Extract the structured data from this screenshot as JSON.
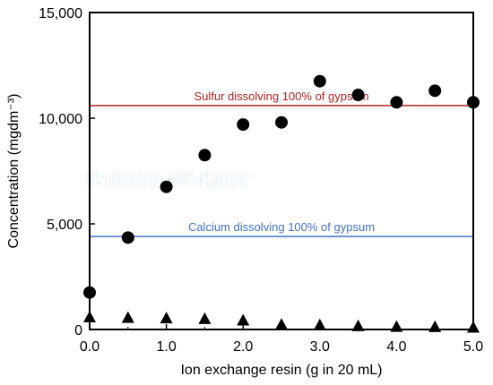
{
  "chart_data": {
    "type": "scatter",
    "title": "",
    "xlabel": "Ion exchange resin (g in 20 mL)",
    "ylabel": "Concentration (mgdm⁻³)",
    "xlim": [
      0,
      5
    ],
    "ylim": [
      0,
      15000
    ],
    "x_ticks": [
      "0.0",
      "1.0",
      "2.0",
      "3.0",
      "4.0",
      "5.0"
    ],
    "y_ticks": [
      "0",
      "5,000",
      "10,000",
      "15,000"
    ],
    "grid": false,
    "series": [
      {
        "marker": "circle",
        "color": "#000000",
        "points": [
          [
            0.0,
            1750
          ],
          [
            0.5,
            4350
          ],
          [
            1.0,
            6750
          ],
          [
            1.5,
            8250
          ],
          [
            2.0,
            9700
          ],
          [
            2.5,
            9800
          ],
          [
            3.0,
            11750
          ],
          [
            3.5,
            11100
          ],
          [
            4.0,
            10750
          ],
          [
            4.5,
            11300
          ],
          [
            5.0,
            10750
          ]
        ]
      },
      {
        "marker": "triangle",
        "color": "#000000",
        "points": [
          [
            0.0,
            550
          ],
          [
            0.5,
            520
          ],
          [
            1.0,
            500
          ],
          [
            1.5,
            470
          ],
          [
            2.0,
            400
          ],
          [
            2.5,
            200
          ],
          [
            3.0,
            170
          ],
          [
            3.5,
            130
          ],
          [
            4.0,
            100
          ],
          [
            4.5,
            90
          ],
          [
            5.0,
            60
          ]
        ]
      }
    ],
    "reference_lines": [
      {
        "label": "Sulfur dissolving 100% of gypsum",
        "y": 10600,
        "color": "#b22222"
      },
      {
        "label": "Calcium dissolving 100% of gypsum",
        "y": 4400,
        "color": "#4472c4"
      }
    ],
    "ghost_labels": [
      {
        "text": "ulfur dissolving 100% of gypsum",
        "x": -0.05,
        "y": 7100,
        "color": "#9fd3f0"
      },
      {
        "text": "um dissolving 100% of gypsum",
        "x": -0.05,
        "y": 6750,
        "color": "#9fd3f0"
      }
    ]
  }
}
